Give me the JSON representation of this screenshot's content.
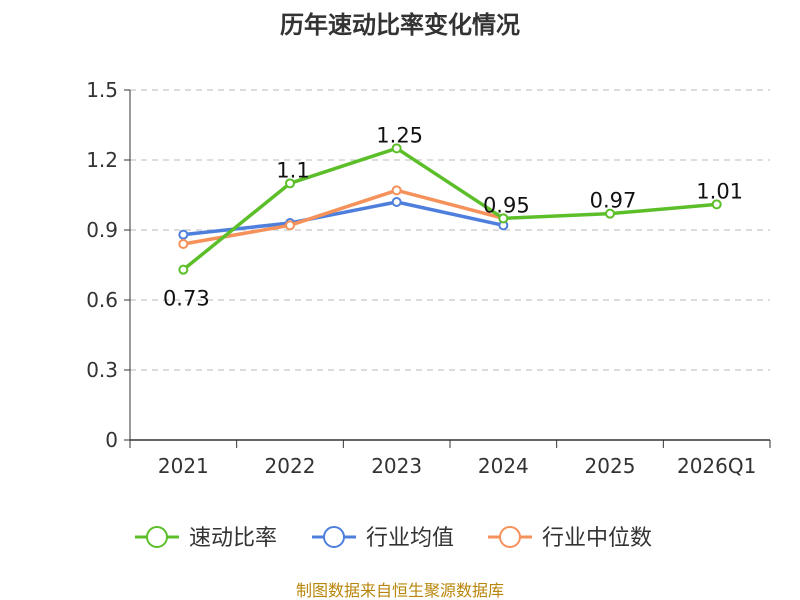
{
  "chart_data": {
    "type": "line",
    "title": "历年速动比率变化情况",
    "categories": [
      "2021",
      "2022",
      "2023",
      "2024",
      "2025",
      "2026Q1"
    ],
    "ylim": [
      0,
      1.5
    ],
    "yticks": [
      "0",
      "0.3",
      "0.6",
      "0.9",
      "1.2",
      "1.5"
    ],
    "grid": true,
    "legend_position": "bottom",
    "series": [
      {
        "name": "速动比率",
        "color": "#5cbf2a",
        "values": [
          0.73,
          1.1,
          1.25,
          0.95,
          0.97,
          1.01
        ],
        "labels": [
          "0.73",
          "1.1",
          "1.25",
          "0.95",
          "0.97",
          "1.01"
        ]
      },
      {
        "name": "行业均值",
        "color": "#4f7fdc",
        "values": [
          0.88,
          0.93,
          1.02,
          0.92,
          null,
          null
        ]
      },
      {
        "name": "行业中位数",
        "color": "#f5915a",
        "values": [
          0.84,
          0.92,
          1.07,
          0.95,
          null,
          null
        ]
      }
    ]
  },
  "footer": {
    "source": "制图数据来自恒生聚源数据库"
  }
}
